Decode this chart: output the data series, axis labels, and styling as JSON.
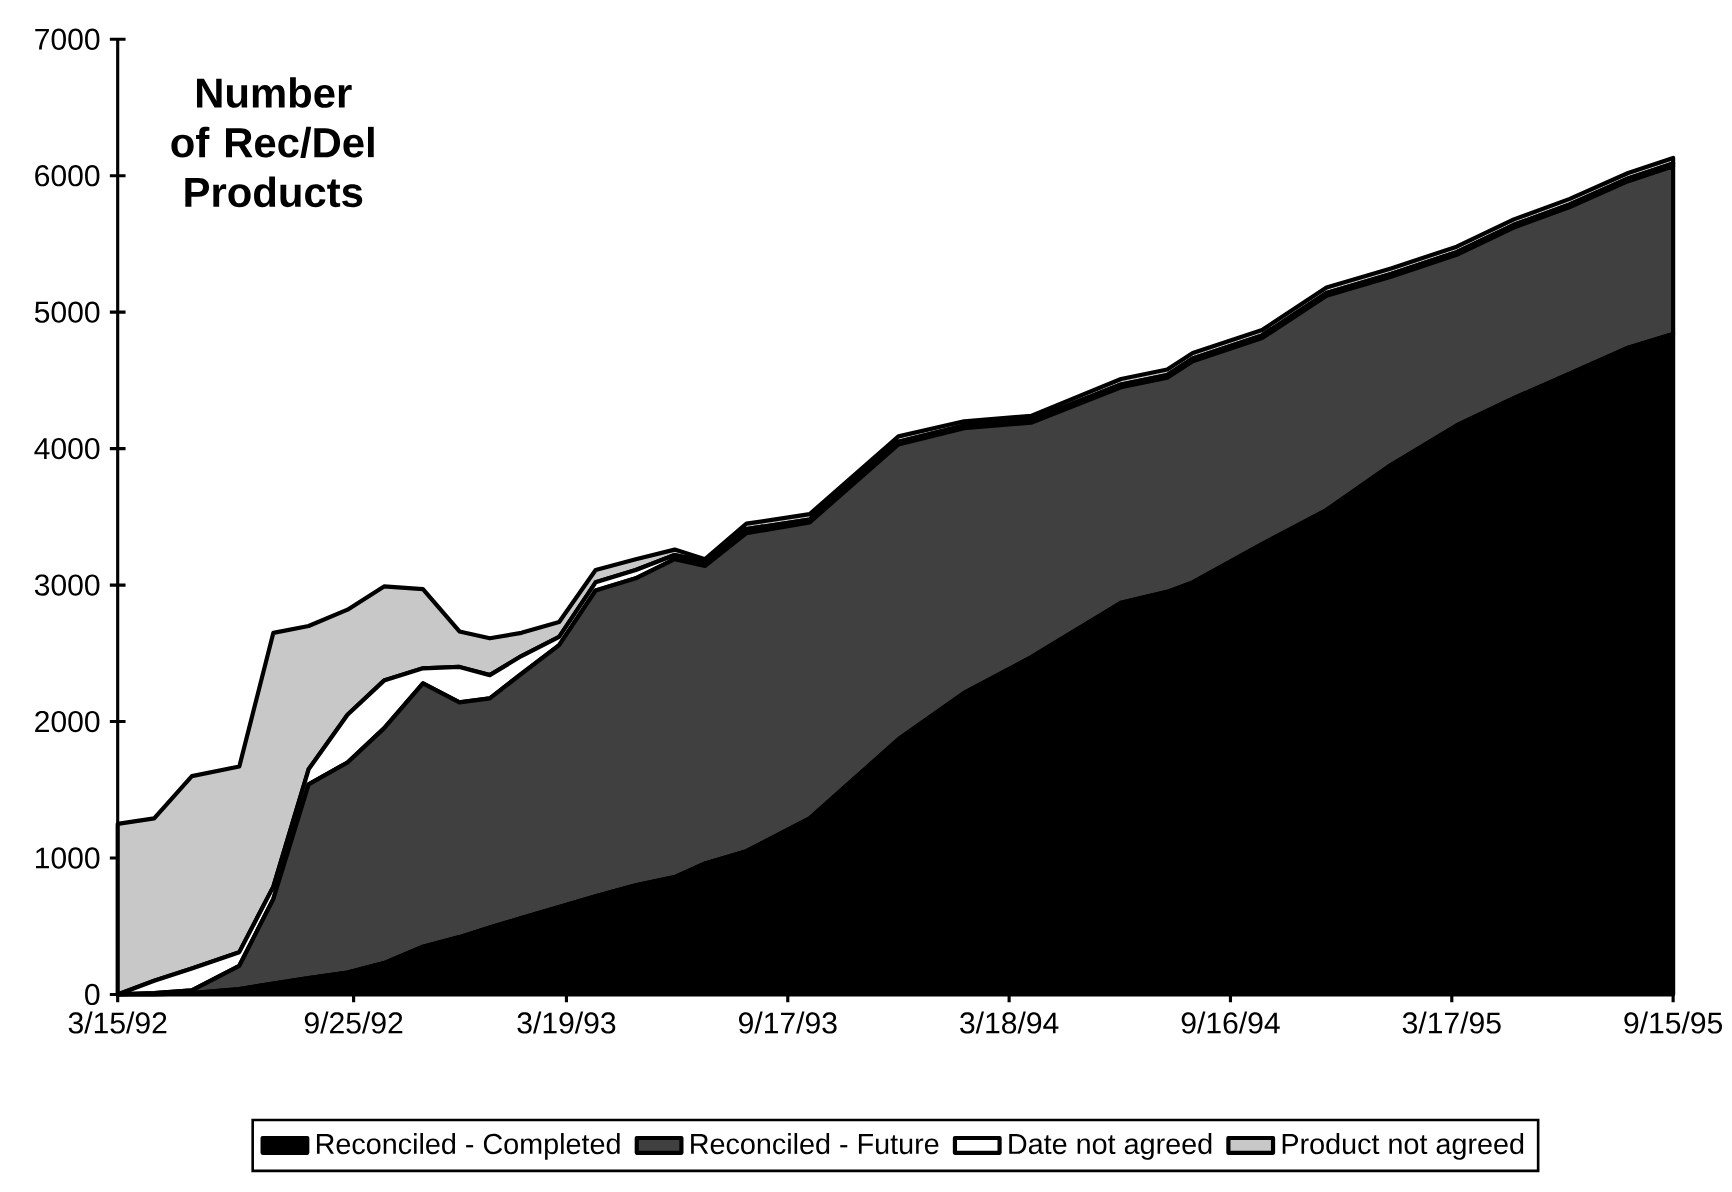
{
  "chart_data": {
    "type": "area",
    "title": "Number of Rec/Del Products",
    "stacked": true,
    "legend": "bottom",
    "x": [
      "1992-03-15",
      "1992-04-14",
      "1992-05-15",
      "1992-06-23",
      "1992-07-21",
      "1992-08-19",
      "1992-09-20",
      "1992-10-20",
      "1992-11-21",
      "1992-12-21",
      "1993-01-15",
      "1993-02-10",
      "1993-03-13",
      "1993-04-12",
      "1993-05-15",
      "1993-06-16",
      "1993-07-11",
      "1993-08-14",
      "1993-10-05",
      "1993-12-17",
      "1994-02-09",
      "1994-04-05",
      "1994-06-18",
      "1994-07-26",
      "1994-08-16",
      "1994-10-12",
      "1994-12-04",
      "1995-01-26",
      "1995-03-21",
      "1995-05-07",
      "1995-06-22",
      "1995-08-09",
      "1995-09-15"
    ],
    "series": [
      {
        "name": "Reconciled - Completed",
        "color": "#000000",
        "values": [
          0,
          0,
          10,
          40,
          80,
          120,
          160,
          230,
          350,
          420,
          490,
          560,
          640,
          720,
          800,
          860,
          960,
          1050,
          1290,
          1870,
          2210,
          2470,
          2870,
          2950,
          3020,
          3300,
          3550,
          3880,
          4170,
          4370,
          4550,
          4740,
          4840
        ]
      },
      {
        "name": "Reconciled - Future",
        "color": "#404040",
        "values": [
          0,
          10,
          20,
          170,
          620,
          1420,
          1540,
          1720,
          1930,
          1720,
          1680,
          1790,
          1920,
          2240,
          2250,
          2330,
          2180,
          2330,
          2170,
          2160,
          1940,
          1720,
          1580,
          1570,
          1620,
          1510,
          1570,
          1380,
          1250,
          1250,
          1220,
          1220,
          1230
        ]
      },
      {
        "name": "Date not agreed",
        "color": "#ffffff",
        "values": [
          0,
          90,
          160,
          100,
          90,
          110,
          350,
          350,
          110,
          260,
          170,
          130,
          60,
          60,
          60,
          30,
          30,
          30,
          20,
          20,
          20,
          20,
          20,
          20,
          20,
          20,
          20,
          20,
          20,
          20,
          20,
          20,
          20
        ]
      },
      {
        "name": "Product not agreed",
        "color": "#c8c8c8",
        "values": [
          1250,
          1190,
          1410,
          1360,
          1860,
          1050,
          770,
          690,
          580,
          260,
          270,
          170,
          110,
          90,
          80,
          40,
          20,
          40,
          40,
          40,
          30,
          30,
          40,
          40,
          40,
          40,
          40,
          40,
          40,
          40,
          40,
          40,
          40
        ]
      }
    ],
    "xlim": [
      "1992-03-15",
      "1995-09-15"
    ],
    "xticks": [
      {
        "value": "1992-03-15",
        "label": "3/15/92"
      },
      {
        "value": "1992-09-25",
        "label": "9/25/92"
      },
      {
        "value": "1993-03-19",
        "label": "3/19/93"
      },
      {
        "value": "1993-09-17",
        "label": "9/17/93"
      },
      {
        "value": "1994-03-18",
        "label": "3/18/94"
      },
      {
        "value": "1994-09-16",
        "label": "9/16/94"
      },
      {
        "value": "1995-03-17",
        "label": "3/17/95"
      },
      {
        "value": "1995-09-15",
        "label": "9/15/95"
      }
    ],
    "ylim": [
      0,
      7000
    ],
    "yticks": [
      0,
      1000,
      2000,
      3000,
      4000,
      5000,
      6000,
      7000
    ]
  }
}
